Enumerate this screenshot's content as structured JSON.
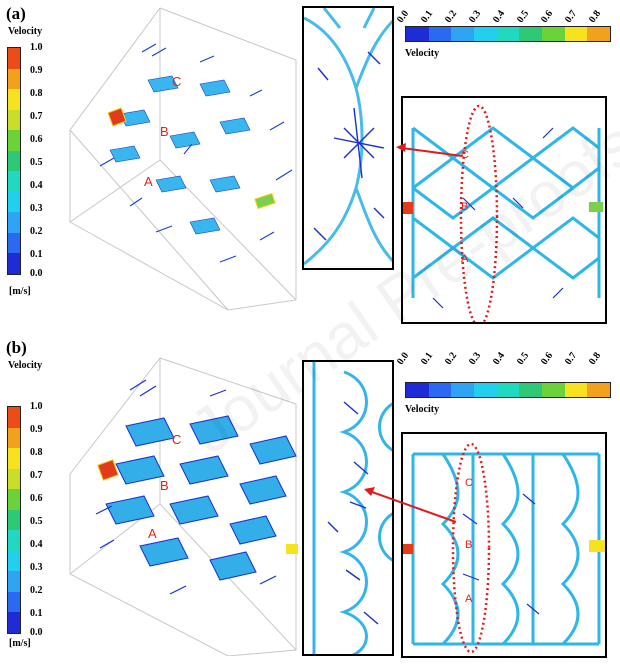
{
  "panels": [
    {
      "id": "a",
      "letter": "(a)",
      "markers": [
        "C",
        "B",
        "A"
      ]
    },
    {
      "id": "b",
      "letter": "(b)",
      "markers": [
        "C",
        "B",
        "A"
      ]
    }
  ],
  "colorbar": {
    "title": "Velocity",
    "unit": "[m/s]",
    "vertical_ticks": [
      "1.0",
      "0.9",
      "0.8",
      "0.7",
      "0.6",
      "0.5",
      "0.4",
      "0.3",
      "0.2",
      "0.1",
      "0.0"
    ],
    "horizontal_ticks": [
      "0.0",
      "0.1",
      "0.2",
      "0.3",
      "0.4",
      "0.5",
      "0.6",
      "0.7",
      "0.8"
    ],
    "colors": [
      "#1f2bd6",
      "#2a6af0",
      "#2fa3f4",
      "#22cfee",
      "#20d9c0",
      "#2ec977",
      "#6bd23a",
      "#c9de2a",
      "#f6e21e",
      "#f2a11c",
      "#ec4c18"
    ]
  },
  "watermark": "Journal Pre-proofs"
}
